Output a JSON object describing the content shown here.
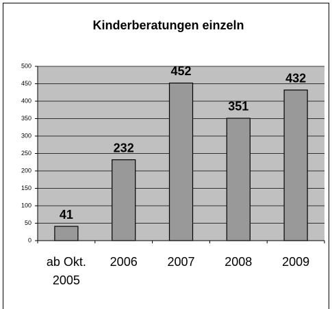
{
  "chart_data": {
    "type": "bar",
    "title": "Kinderberatungen einzeln",
    "categories": [
      "ab Okt. 2005",
      "2006",
      "2007",
      "2008",
      "2009"
    ],
    "values": [
      41,
      232,
      452,
      351,
      432
    ],
    "color": "#999999",
    "plot_background": "#c0c0c0",
    "ylim": [
      0,
      500
    ],
    "yticks": [
      0,
      50,
      100,
      150,
      200,
      250,
      300,
      350,
      400,
      450,
      500
    ],
    "grid": true
  }
}
